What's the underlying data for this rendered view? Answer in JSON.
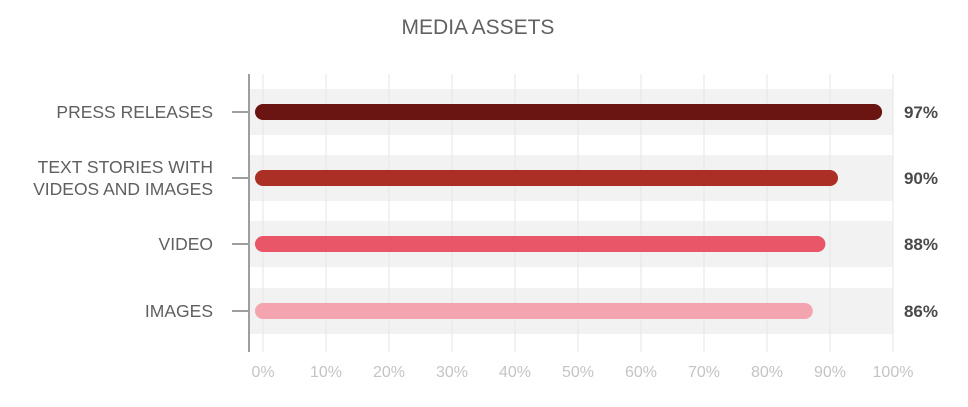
{
  "chart_data": {
    "type": "bar",
    "orientation": "horizontal",
    "title": "MEDIA ASSETS",
    "categories": [
      [
        "PRESS RELEASES"
      ],
      [
        "TEXT STORIES WITH",
        "VIDEOS AND IMAGES"
      ],
      [
        "VIDEO"
      ],
      [
        "IMAGES"
      ]
    ],
    "values": [
      97,
      90,
      88,
      86
    ],
    "value_labels": [
      "97%",
      "90%",
      "88%",
      "86%"
    ],
    "colors": [
      "#6b1512",
      "#ac2f26",
      "#e85668",
      "#f3a4ae"
    ],
    "x_ticks": [
      "0%",
      "10%",
      "20%",
      "30%",
      "40%",
      "50%",
      "60%",
      "70%",
      "80%",
      "90%",
      "100%"
    ],
    "xlim": [
      0,
      100
    ],
    "grid": true,
    "xlabel": "",
    "ylabel": ""
  }
}
